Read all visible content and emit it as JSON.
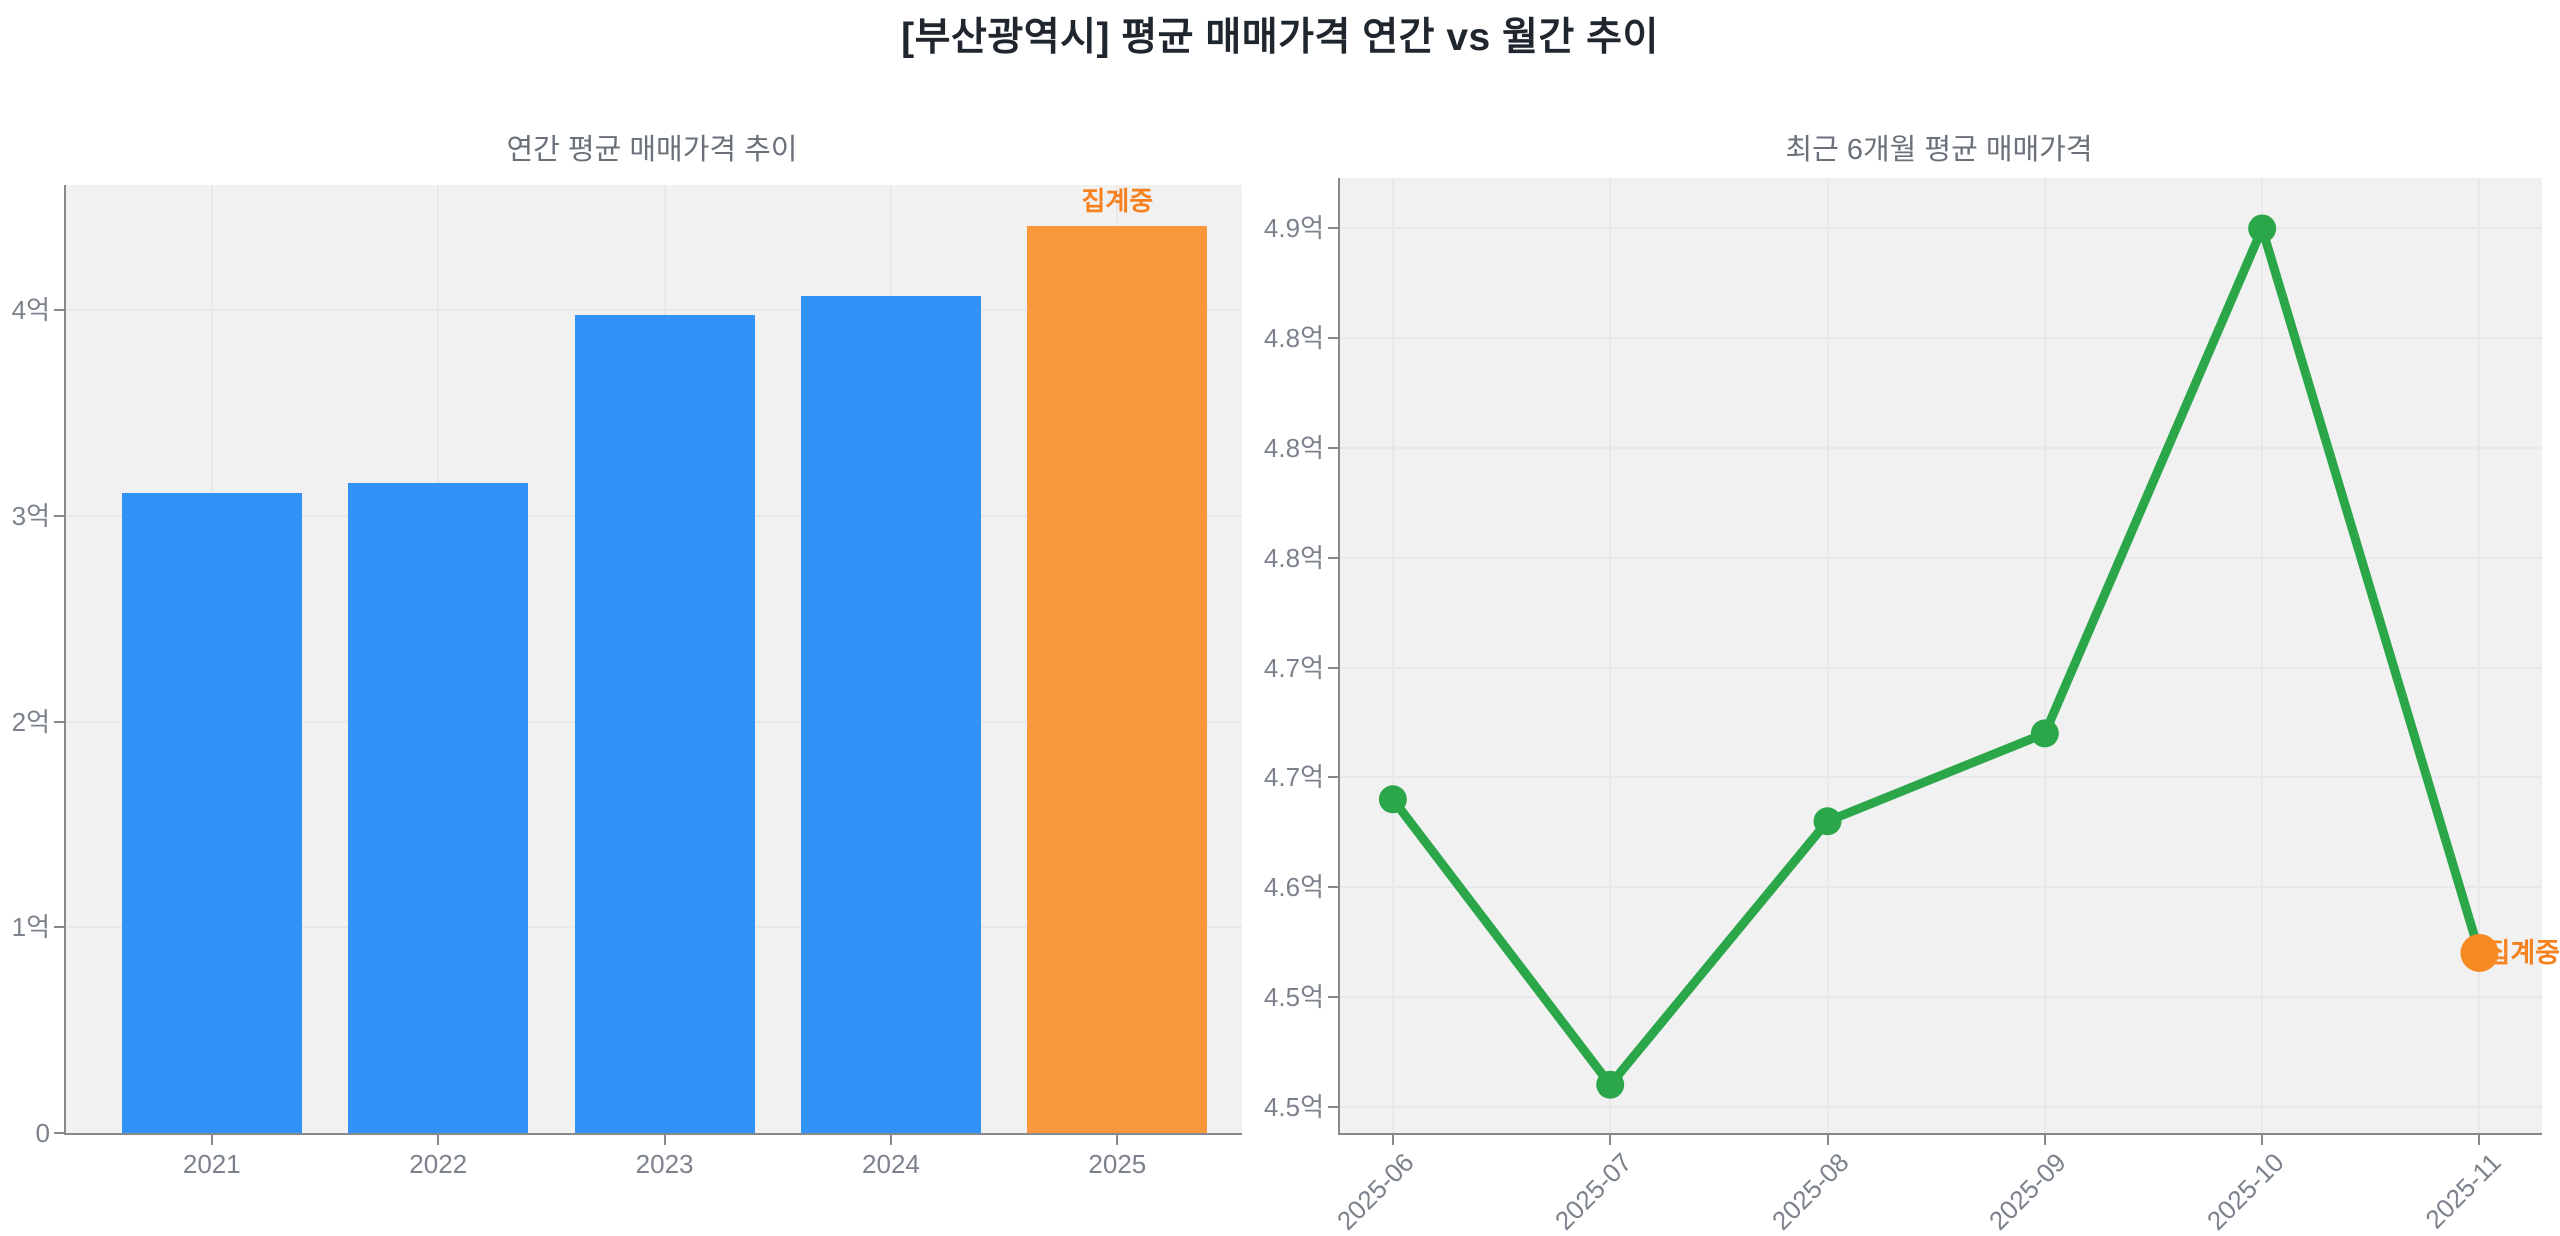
{
  "page": {
    "title": "[부산광역시] 평균 매매가격 연간 vs 월간 추이"
  },
  "colors": {
    "bar_blue": "#3193f8",
    "bar_orange": "#f8973c",
    "annotation_orange": "#f5821f",
    "line_green": "#2ba74a",
    "dot_orange": "#f68b23",
    "plot_bg": "#f1f1f2",
    "grid": "#e7e8ea",
    "axis": "#87898c",
    "tick_text": "#7c828b",
    "subtitle_text": "#6a7179",
    "title_text": "#20262e"
  },
  "chart_data": [
    {
      "type": "bar",
      "title": "연간 평균 매매가격 추이",
      "categories": [
        "2021",
        "2022",
        "2023",
        "2024",
        "2025"
      ],
      "values": [
        3.11,
        3.16,
        3.98,
        4.07,
        4.41
      ],
      "unit": "억",
      "ylim": [
        0,
        4.61
      ],
      "yticks": [
        {
          "value": 0,
          "label": "0"
        },
        {
          "value": 1,
          "label": "1억"
        },
        {
          "value": 2,
          "label": "2억"
        },
        {
          "value": 3,
          "label": "3억"
        },
        {
          "value": 4,
          "label": "4억"
        }
      ],
      "grid": true,
      "highlight_last": true,
      "annotation": "집계중"
    },
    {
      "type": "line",
      "title": "최근 6개월 평균 매매가격",
      "categories": [
        "2025-06",
        "2025-07",
        "2025-08",
        "2025-09",
        "2025-10",
        "2025-11"
      ],
      "values": [
        4.64,
        4.51,
        4.63,
        4.67,
        4.9,
        4.57
      ],
      "unit": "억",
      "ylim": [
        4.488,
        4.923
      ],
      "yticks": [
        {
          "value": 4.9,
          "label": "4.9억"
        },
        {
          "value": 4.85,
          "label": "4.8억"
        },
        {
          "value": 4.8,
          "label": "4.8억"
        },
        {
          "value": 4.75,
          "label": "4.8억"
        },
        {
          "value": 4.7,
          "label": "4.7억"
        },
        {
          "value": 4.65,
          "label": "4.7억"
        },
        {
          "value": 4.6,
          "label": "4.6억"
        },
        {
          "value": 4.55,
          "label": "4.5억"
        },
        {
          "value": 4.5,
          "label": "4.5억"
        }
      ],
      "grid": true,
      "highlight_last": true,
      "annotation": "집계중"
    }
  ]
}
